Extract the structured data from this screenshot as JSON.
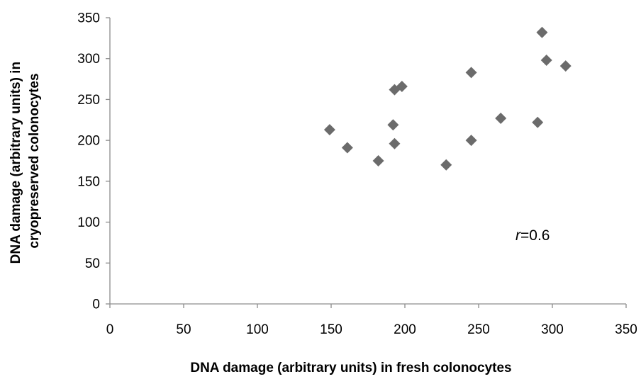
{
  "chart_data": {
    "type": "scatter",
    "xlabel": "DNA damage (arbitrary units) in fresh colonocytes",
    "ylabel_lines": [
      "DNA damage (arbitrary units) in",
      "cryopreserved colonocytes"
    ],
    "xlim": [
      0,
      350
    ],
    "ylim": [
      0,
      350
    ],
    "x_ticks": [
      "0",
      "50",
      "100",
      "150",
      "200",
      "250",
      "300",
      "350"
    ],
    "y_ticks": [
      "0",
      "50",
      "100",
      "150",
      "200",
      "250",
      "300",
      "350"
    ],
    "grid": false,
    "marker": "diamond",
    "marker_color": "#6b6b6b",
    "annotation": {
      "italic": "r",
      "text": "=0.6"
    },
    "points": [
      {
        "x": 149,
        "y": 213
      },
      {
        "x": 161,
        "y": 191
      },
      {
        "x": 182,
        "y": 175
      },
      {
        "x": 192,
        "y": 219
      },
      {
        "x": 193,
        "y": 196
      },
      {
        "x": 193,
        "y": 262
      },
      {
        "x": 198,
        "y": 266
      },
      {
        "x": 228,
        "y": 170
      },
      {
        "x": 245,
        "y": 283
      },
      {
        "x": 245,
        "y": 200
      },
      {
        "x": 265,
        "y": 227
      },
      {
        "x": 290,
        "y": 222
      },
      {
        "x": 293,
        "y": 332
      },
      {
        "x": 296,
        "y": 298
      },
      {
        "x": 309,
        "y": 291
      }
    ]
  }
}
